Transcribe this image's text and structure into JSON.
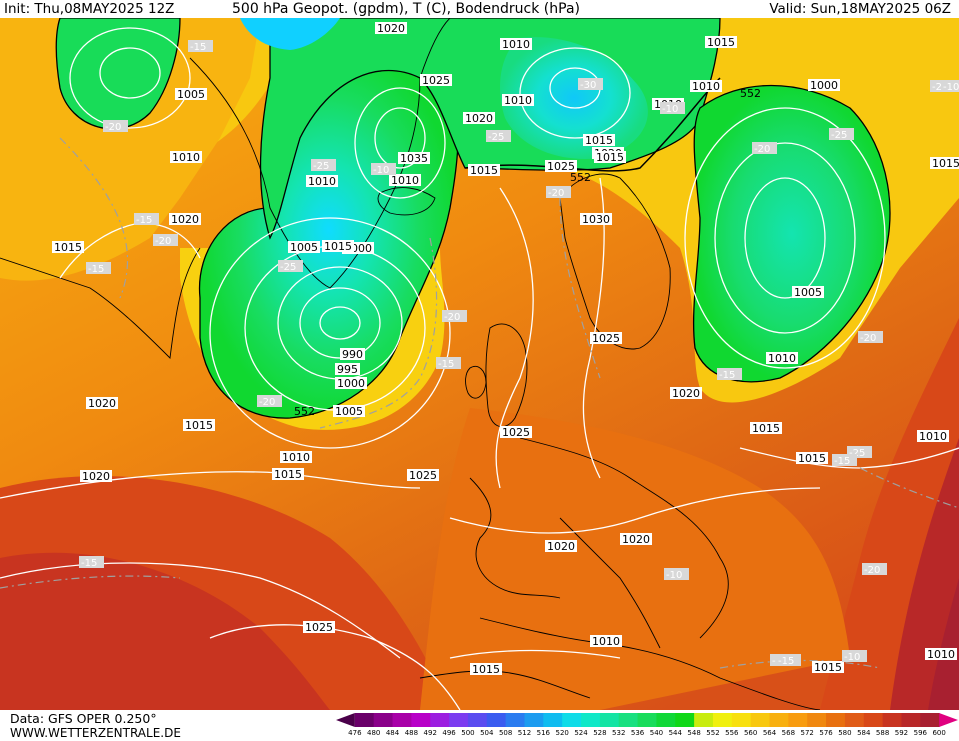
{
  "header": {
    "init": "Init: Thu,08MAY2025 12Z",
    "title": "500 hPa Geopot. (gpdm), T (C), Bodendruck (hPa)",
    "valid": "Valid: Sun,18MAY2025 06Z"
  },
  "footer": {
    "data_source": "Data: GFS OPER 0.250°",
    "website": "WWW.WETTERZENTRALE.DE"
  },
  "colorbar": {
    "labels": [
      "476",
      "480",
      "484",
      "488",
      "492",
      "496",
      "500",
      "504",
      "508",
      "512",
      "516",
      "520",
      "524",
      "528",
      "532",
      "536",
      "540",
      "544",
      "548",
      "552",
      "556",
      "560",
      "564",
      "568",
      "572",
      "576",
      "580",
      "584",
      "588",
      "592",
      "596",
      "600"
    ],
    "colors": [
      "#4a004a",
      "#6a006a",
      "#8a008a",
      "#a800a8",
      "#b800c8",
      "#9c1ee0",
      "#7c3cf0",
      "#5a4cf0",
      "#3a5cf0",
      "#2a7cf0",
      "#1c9cf0",
      "#10bcf0",
      "#10dce8",
      "#10e8c8",
      "#14e4a4",
      "#18e080",
      "#18dc5c",
      "#10d838",
      "#10d818",
      "#c8ec10",
      "#f0f010",
      "#f8e010",
      "#f8c810",
      "#f8b010",
      "#f89c10",
      "#f08810",
      "#e87010",
      "#e05c18",
      "#d84818",
      "#c83420",
      "#b82828",
      "#a82030",
      "#e00080"
    ]
  },
  "map": {
    "pressure_labels": [
      "1020",
      "1010",
      "1015",
      "1005",
      "1010",
      "1025",
      "1020",
      "1035",
      "1010",
      "1010",
      "1015",
      "1020",
      "1015",
      "1000",
      "1010",
      "1005",
      "1000",
      "990",
      "995",
      "1000",
      "1005",
      "1010",
      "1015",
      "1010",
      "1015",
      "1025",
      "1020",
      "1015",
      "1020",
      "1025",
      "1030",
      "1015",
      "1015",
      "1010",
      "1000",
      "1005",
      "1010",
      "1015",
      "1020",
      "1025",
      "1025",
      "1020",
      "1020",
      "1015",
      "1010",
      "1010",
      "1010",
      "1015",
      "1020",
      "1025",
      "1015",
      "1010",
      "1015"
    ],
    "temperature_labels": [
      "-15",
      "-20",
      "-25",
      "-30",
      "-20",
      "-25",
      "-25",
      "-20",
      "-15",
      "-20",
      "-15",
      "-20",
      "-25",
      "-20",
      "-20",
      "-15",
      "-20",
      "-25",
      "-20",
      "-20",
      "-15",
      "-15",
      "-10",
      "-10",
      "-15",
      "-10",
      "-10",
      "-10",
      "-15"
    ],
    "height_labels": [
      "552",
      "552",
      "552"
    ]
  }
}
